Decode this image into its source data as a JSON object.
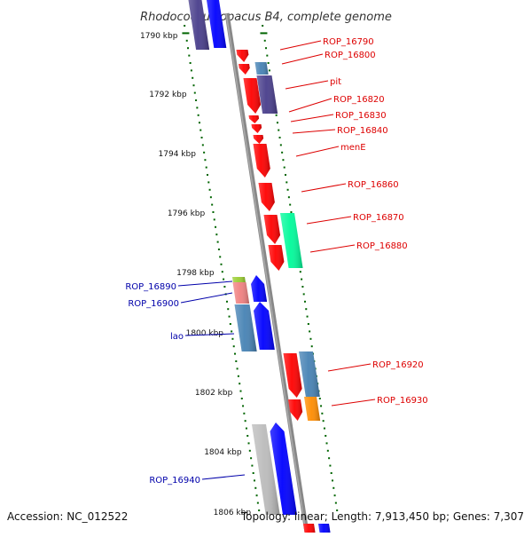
{
  "title": "Rhodococcus opacus B4, complete genome",
  "footer": {
    "accession": "Accession: NC_012522",
    "stats": "Topology: linear; Length: 7,913,450 bp; Genes: 7,307"
  },
  "colors": {
    "red": "#ff0000",
    "blue": "#0000ff",
    "steelblue": "#4682b4",
    "slate": "#483d8b",
    "green": "#00fa9a",
    "salmon": "#f08080",
    "lightgreen": "#9acd32",
    "orange": "#ff8c00",
    "gray": "#bbbbbb",
    "tick": "#006400",
    "label_red": "#dd0000",
    "label_blue": "#0000aa"
  },
  "kbp_labels": [
    "1790 kbp",
    "1792 kbp",
    "1794 kbp",
    "1796 kbp",
    "1798 kbp",
    "1800 kbp",
    "1802 kbp",
    "1804 kbp",
    "1806 kbp"
  ],
  "gene_labels_right": [
    "ROP_16790",
    "ROP_16800",
    "pit",
    "ROP_16820",
    "ROP_16830",
    "ROP_16840",
    "menE",
    "ROP_16860",
    "ROP_16870",
    "ROP_16880",
    "ROP_16920",
    "ROP_16930"
  ],
  "gene_labels_left": [
    "ROP_16890",
    "ROP_16900",
    "lao",
    "ROP_16940"
  ]
}
